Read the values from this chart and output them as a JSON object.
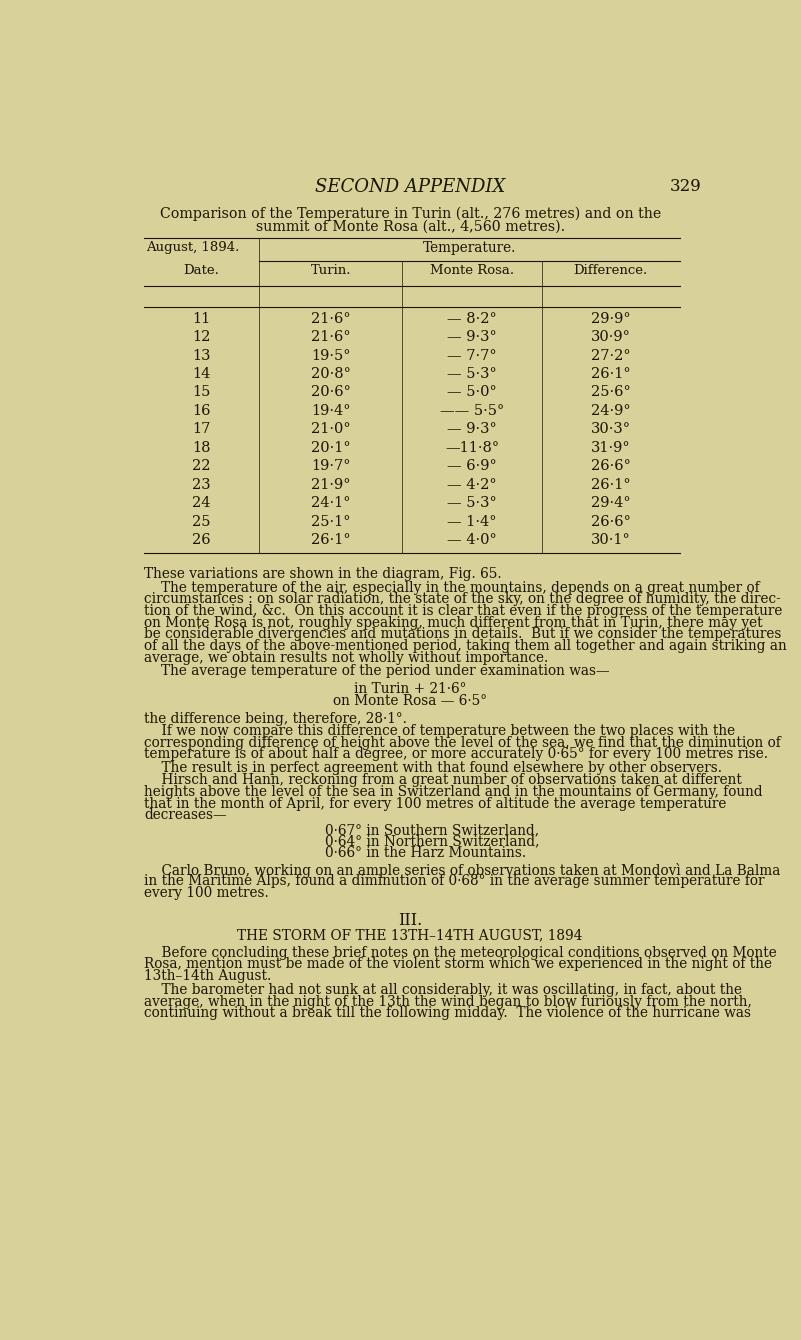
{
  "bg_color": "#d8d19a",
  "text_color": "#1a1500",
  "page_number": "329",
  "header_title": "SECOND APPENDIX",
  "table_caption_line1": "Comparison of the Temperature in Turin (alt., 276 metres) and on the",
  "table_caption_line2": "summit of Monte Rosa (alt., 4,560 metres).",
  "table_data": [
    [
      "11",
      "21·6°",
      "— 8·2°",
      "29·9°"
    ],
    [
      "12",
      "21·6°",
      "— 9·3°",
      "30·9°"
    ],
    [
      "13",
      "19·5°",
      "— 7·7°",
      "27·2°"
    ],
    [
      "14",
      "20·8°",
      "— 5·3°",
      "26·1°"
    ],
    [
      "15",
      "20·6°",
      "— 5·0°",
      "25·6°"
    ],
    [
      "16",
      "19·4°",
      "—— 5·5°",
      "24·9°"
    ],
    [
      "17",
      "21·0°",
      "— 9·3°",
      "30·3°"
    ],
    [
      "18",
      "20·1°",
      "—11·8°",
      "31·9°"
    ],
    [
      "22",
      "19·7°",
      "— 6·9°",
      "26·6°"
    ],
    [
      "23",
      "21·9°",
      "— 4·2°",
      "26·1°"
    ],
    [
      "24",
      "24·1°",
      "— 5·3°",
      "29·4°"
    ],
    [
      "25",
      "25·1°",
      "— 1·4°",
      "26·6°"
    ],
    [
      "26",
      "26·1°",
      "— 4·0°",
      "30·1°"
    ]
  ],
  "body_text": [
    {
      "indent": false,
      "text": "These variations are shown in the diagram, Fig. 65."
    },
    {
      "indent": true,
      "text": "The temperature of the air, especially in the mountains, depends on a great number of\ncircumstances : on solar radiation, the state of the sky, on the degree of humidity, the direc-\ntion of the wind, &c.  On this account it is clear that even if the progress of the temperature\non Monte Rosa is not, roughly speaking, much different from that in Turin, there may yet\nbe considerable divergencies and mutations in details.  But if we consider the temperatures\nof all the days of the above-mentioned period, taking them all together and again striking an\naverage, we obtain results not wholly without importance."
    },
    {
      "indent": true,
      "text": "The average temperature of the period under examination was—"
    }
  ],
  "avg_line1": "in Turin + 21·6°",
  "avg_line2": "on Monte Rosa — 6·5°",
  "para_diff": "the difference being, therefore, 28·1°.",
  "para3_lines": [
    "    If we now compare this difference of temperature between the two places with the",
    "corresponding difference of height above the level of the sea, we find that the diminution of",
    "temperature is of about half a degree, or more accurately 0·65° for every 100 metres rise."
  ],
  "para4": "    The result is in perfect agreement with that found elsewhere by other observers.",
  "para5_lines": [
    "    Hirsch and Hann, reckoning from a great number of observations taken at different",
    "heights above the level of the sea in Switzerland and in the mountains of Germany, found",
    "that in the month of April, for every 100 metres of altitude the average temperature",
    "decreases—"
  ],
  "decreases_list": [
    "0·67° in Southern Switzerland,",
    "0·64° in Northern Switzerland,",
    "0·66° in the Harz Mountains."
  ],
  "para6_lines": [
    "    Carlo Bruno, working on an ample series of observations taken at Mondovì and La Balma",
    "in the Maritime Alps, found a diminution of 0·68° in the average summer temperature for",
    "every 100 metres."
  ],
  "section_iii_number": "III.",
  "section_iii_title": "the storm of the 13th–14th august, 1894",
  "sec3_para1_lines": [
    "    Before concluding these brief notes on the meteorological conditions observed on Monte",
    "Rosa, mention must be made of the violent storm which we experienced in the night of the",
    "13th–14th August."
  ],
  "sec3_para2_lines": [
    "    The barometer had not sunk at all considerably, it was oscillating, in fact, about the",
    "average, when in the night of the 13th the wind began to blow furiously from the north,",
    "continuing without a break till the following midday.  The violence of the hurricane was"
  ]
}
